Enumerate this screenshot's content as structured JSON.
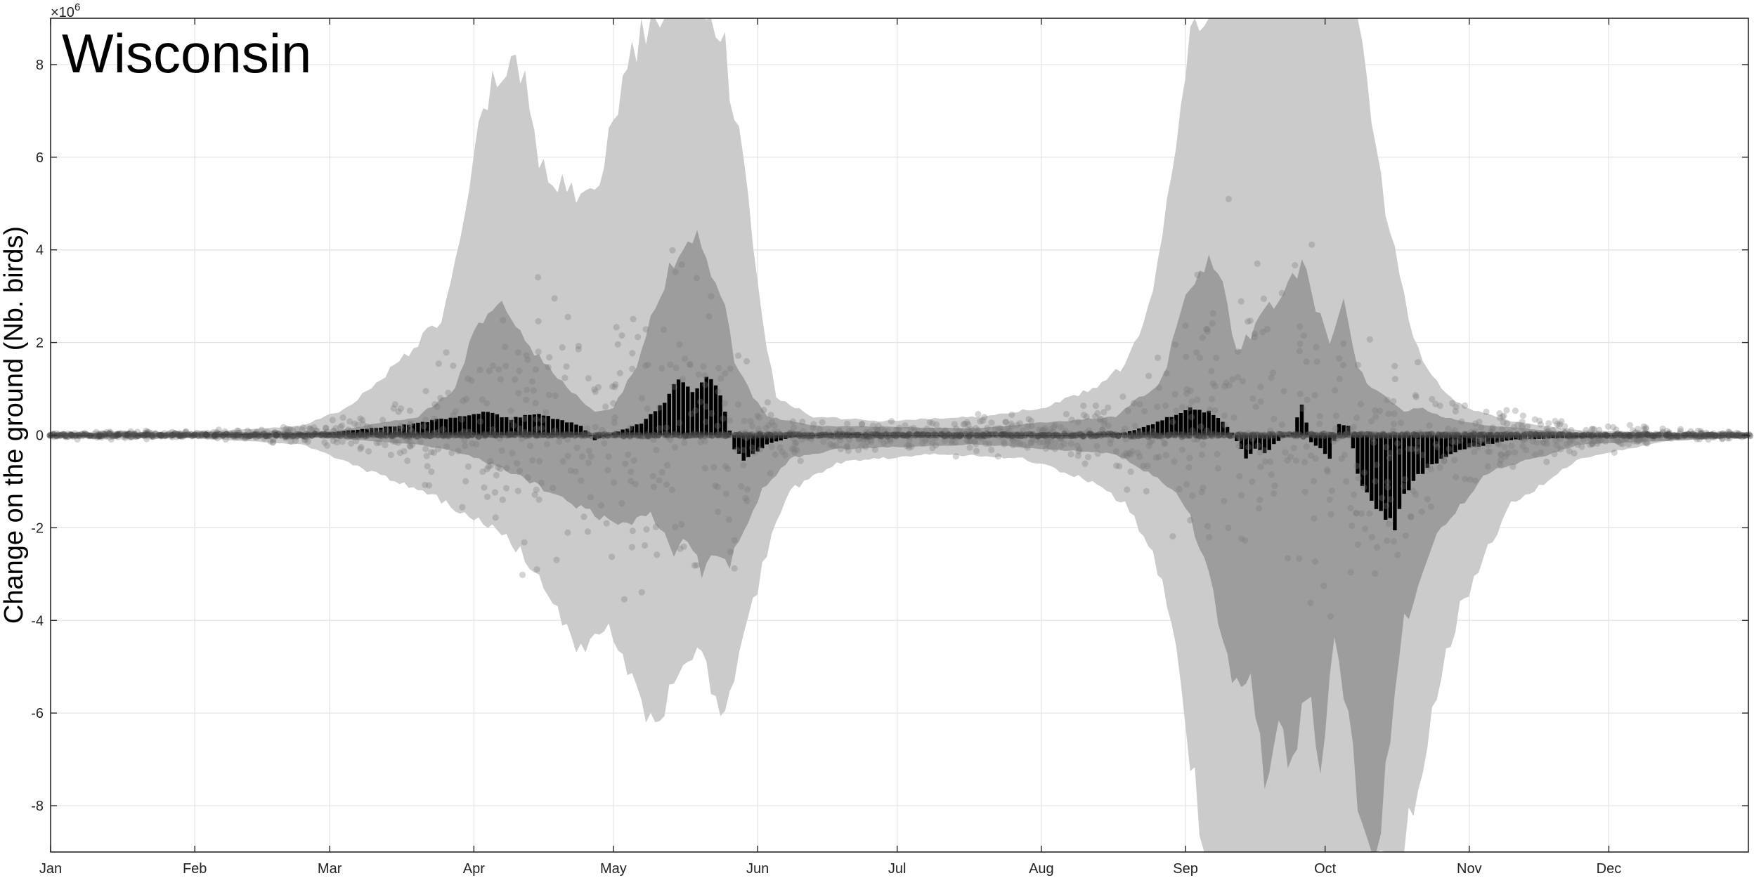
{
  "chart_data": {
    "type": "bar",
    "title": "Wisconsin",
    "ylabel": "Change on the ground (Nb. birds)",
    "xlabel": "",
    "y_exponent_label": "×10",
    "y_exponent_power": "6",
    "y_scale": 1000000,
    "xlim": [
      1,
      366
    ],
    "ylim": [
      -9,
      9
    ],
    "yticks": [
      -8,
      -6,
      -4,
      -2,
      0,
      2,
      4,
      6,
      8
    ],
    "month_ticks": [
      {
        "label": "Jan",
        "day": 1
      },
      {
        "label": "Feb",
        "day": 32
      },
      {
        "label": "Mar",
        "day": 61
      },
      {
        "label": "Apr",
        "day": 92
      },
      {
        "label": "May",
        "day": 122
      },
      {
        "label": "Jun",
        "day": 153
      },
      {
        "label": "Jul",
        "day": 183
      },
      {
        "label": "Aug",
        "day": 214
      },
      {
        "label": "Sep",
        "day": 245
      },
      {
        "label": "Oct",
        "day": 275
      },
      {
        "label": "Nov",
        "day": 306
      },
      {
        "label": "Dec",
        "day": 336
      }
    ],
    "grid": true,
    "colors": {
      "outer_band": "#cbcbcb",
      "inner_band": "#8e8e8e",
      "bars": "#000000",
      "points": "#7a7a7a",
      "grid": "#e3e3e3"
    },
    "bars_anchor": {
      "days": [
        1,
        30,
        60,
        70,
        80,
        88,
        95,
        100,
        105,
        110,
        115,
        118,
        122,
        128,
        132,
        136,
        139,
        141,
        143,
        145,
        148,
        150,
        152,
        155,
        160,
        170,
        180,
        200,
        220,
        232,
        238,
        242,
        246,
        250,
        253,
        255,
        258,
        260,
        262,
        264,
        266,
        268,
        270,
        272,
        274,
        276,
        278,
        280,
        282,
        284,
        287,
        290,
        292,
        294,
        296,
        300,
        305,
        315,
        330,
        345,
        366
      ],
      "values": [
        0,
        0.01,
        0.05,
        0.15,
        0.25,
        0.4,
        0.5,
        0.35,
        0.45,
        0.35,
        0.2,
        -0.1,
        0.05,
        0.25,
        0.6,
        1.2,
        0.9,
        1.15,
        1.25,
        0.9,
        -0.3,
        -0.55,
        -0.4,
        -0.2,
        -0.05,
        0.05,
        0,
        0,
        0,
        0.05,
        0.25,
        0.4,
        0.6,
        0.5,
        0.3,
        0.05,
        -0.5,
        -0.3,
        -0.4,
        -0.2,
        -0.05,
        0.05,
        0.7,
        -0.15,
        -0.3,
        -0.5,
        0.25,
        0.2,
        -0.8,
        -1.3,
        -1.7,
        -2.0,
        -1.3,
        -1.0,
        -0.8,
        -0.5,
        -0.3,
        -0.1,
        -0.05,
        0,
        0
      ]
    },
    "outer_band_upper": {
      "days": [
        1,
        30,
        55,
        65,
        75,
        85,
        90,
        93,
        96,
        100,
        103,
        106,
        110,
        113,
        116,
        118,
        121,
        124,
        127,
        130,
        135,
        140,
        145,
        148,
        151,
        154,
        157,
        165,
        180,
        200,
        215,
        225,
        232,
        238,
        242,
        246,
        250,
        256,
        262,
        268,
        274,
        278,
        282,
        286,
        290,
        294,
        300,
        305,
        315,
        330,
        350,
        366
      ],
      "values": [
        0.05,
        0.05,
        0.2,
        0.6,
        1.5,
        2.5,
        4.5,
        6.5,
        7.5,
        8.2,
        7.5,
        6.0,
        5.5,
        5.2,
        5.4,
        5.0,
        6.5,
        7.5,
        8.5,
        9.0,
        9.5,
        9.5,
        9.0,
        7.0,
        5.0,
        2.5,
        0.8,
        0.4,
        0.3,
        0.4,
        0.6,
        1.0,
        1.5,
        3.0,
        5.5,
        9.0,
        9.5,
        9.5,
        9.5,
        9.5,
        9.5,
        9.5,
        9.5,
        6.0,
        4.0,
        2.0,
        1.0,
        0.6,
        0.3,
        0.1,
        0.05,
        0.05
      ]
    },
    "outer_band_lower": {
      "days": [
        1,
        30,
        55,
        65,
        75,
        85,
        92,
        100,
        106,
        110,
        115,
        120,
        125,
        130,
        135,
        140,
        145,
        150,
        155,
        160,
        170,
        190,
        210,
        225,
        232,
        238,
        242,
        246,
        250,
        256,
        262,
        268,
        274,
        278,
        282,
        286,
        290,
        294,
        300,
        305,
        315,
        330,
        350,
        366
      ],
      "values": [
        -0.05,
        -0.05,
        -0.2,
        -0.6,
        -1.0,
        -1.4,
        -1.8,
        -2.3,
        -3.0,
        -3.8,
        -4.6,
        -4.0,
        -5.0,
        -6.2,
        -5.5,
        -4.5,
        -6.0,
        -4.5,
        -2.5,
        -1.2,
        -0.6,
        -0.4,
        -0.5,
        -1.0,
        -1.5,
        -2.5,
        -4.0,
        -7.0,
        -9.5,
        -9.5,
        -9.5,
        -9.5,
        -9.5,
        -9.5,
        -9.5,
        -9.5,
        -9.5,
        -8.0,
        -5.0,
        -3.5,
        -1.5,
        -0.5,
        -0.1,
        -0.05
      ]
    },
    "inner_band_upper": {
      "days": [
        1,
        60,
        80,
        88,
        93,
        98,
        103,
        110,
        118,
        122,
        127,
        130,
        135,
        140,
        143,
        146,
        148,
        151,
        155,
        165,
        200,
        230,
        240,
        245,
        250,
        253,
        256,
        259,
        262,
        266,
        270,
        273,
        276,
        279,
        282,
        285,
        288,
        292,
        296,
        300,
        310,
        330,
        366
      ],
      "values": [
        0.02,
        0.05,
        0.4,
        1.0,
        2.5,
        2.8,
        2.0,
        1.2,
        0.5,
        0.6,
        1.5,
        2.5,
        3.8,
        4.2,
        3.5,
        2.8,
        1.5,
        1.0,
        0.4,
        0.2,
        0.15,
        0.4,
        1.2,
        3.0,
        3.9,
        3.2,
        1.8,
        2.2,
        2.8,
        3.0,
        3.7,
        2.8,
        2.0,
        2.8,
        1.5,
        1.0,
        0.8,
        0.5,
        0.6,
        0.4,
        0.2,
        0.05,
        0.02
      ]
    },
    "inner_band_lower": {
      "days": [
        1,
        60,
        80,
        90,
        100,
        108,
        115,
        120,
        125,
        130,
        135,
        138,
        141,
        144,
        147,
        150,
        154,
        160,
        170,
        200,
        230,
        240,
        245,
        250,
        253,
        256,
        259,
        262,
        265,
        268,
        271,
        274,
        277,
        280,
        283,
        286,
        289,
        292,
        296,
        300,
        310,
        330,
        366
      ],
      "values": [
        -0.02,
        -0.05,
        -0.2,
        -0.4,
        -0.8,
        -1.2,
        -1.6,
        -1.8,
        -2.0,
        -1.7,
        -2.5,
        -2.2,
        -3.0,
        -2.6,
        -2.8,
        -2.0,
        -1.2,
        -0.5,
        -0.3,
        -0.2,
        -0.4,
        -1.0,
        -1.5,
        -3.0,
        -4.5,
        -5.5,
        -5.0,
        -7.5,
        -6.5,
        -7.0,
        -5.5,
        -7.0,
        -4.5,
        -6.0,
        -8.5,
        -9.0,
        -6.5,
        -4.0,
        -3.0,
        -2.0,
        -0.8,
        -0.2,
        -0.05
      ]
    },
    "points_envelope": {
      "days": [
        1,
        40,
        60,
        75,
        90,
        100,
        110,
        120,
        130,
        140,
        148,
        152,
        156,
        165,
        190,
        215,
        230,
        240,
        248,
        256,
        264,
        272,
        280,
        288,
        296,
        304,
        315,
        330,
        345,
        366
      ],
      "values": [
        0.1,
        0.15,
        0.3,
        0.9,
        2.5,
        4.5,
        4.5,
        4.8,
        5.5,
        5.5,
        4.0,
        2.0,
        1.0,
        0.5,
        0.45,
        0.6,
        1.2,
        2.8,
        4.5,
        5.5,
        5.5,
        5.5,
        5.2,
        3.5,
        2.2,
        1.5,
        1.0,
        0.5,
        0.25,
        0.1
      ]
    },
    "points_count": 1500
  }
}
